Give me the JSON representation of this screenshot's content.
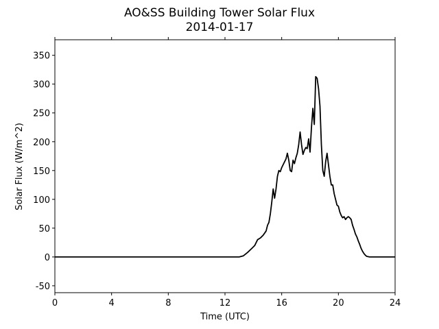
{
  "chart_data": {
    "type": "line",
    "title": "AO&SS Building Tower Solar Flux",
    "subtitle": "2014-01-17",
    "xlabel": "Time (UTC)",
    "ylabel": "Solar Flux (W/m^2)",
    "xlim": [
      0,
      24
    ],
    "ylim": [
      -62,
      377
    ],
    "xticks": [
      0,
      4,
      8,
      12,
      16,
      20,
      24
    ],
    "yticks": [
      -50,
      0,
      50,
      100,
      150,
      200,
      250,
      300,
      350
    ],
    "grid": false,
    "series": [
      {
        "color": "#000000",
        "x": [
          0,
          12.0,
          13.0,
          13.3,
          13.6,
          13.9,
          14.1,
          14.3,
          14.5,
          14.7,
          14.9,
          15.0,
          15.1,
          15.2,
          15.3,
          15.4,
          15.5,
          15.6,
          15.7,
          15.8,
          15.9,
          16.0,
          16.1,
          16.2,
          16.3,
          16.4,
          16.5,
          16.6,
          16.7,
          16.8,
          16.9,
          17.0,
          17.1,
          17.2,
          17.3,
          17.4,
          17.5,
          17.6,
          17.7,
          17.8,
          17.9,
          18.0,
          18.1,
          18.2,
          18.3,
          18.4,
          18.5,
          18.6,
          18.7,
          18.8,
          18.9,
          19.0,
          19.1,
          19.2,
          19.3,
          19.4,
          19.5,
          19.6,
          19.7,
          19.8,
          19.9,
          20.0,
          20.1,
          20.2,
          20.3,
          20.4,
          20.5,
          20.6,
          20.7,
          20.8,
          20.9,
          21.0,
          21.1,
          21.2,
          21.3,
          21.4,
          21.5,
          21.6,
          21.7,
          21.8,
          21.9,
          22.0,
          22.2,
          22.4,
          22.6,
          22.8,
          23.0,
          23.2,
          23.4,
          24.0
        ],
        "y": [
          0,
          0,
          0,
          2,
          8,
          15,
          20,
          30,
          33,
          38,
          45,
          55,
          60,
          75,
          95,
          118,
          102,
          118,
          140,
          150,
          148,
          155,
          160,
          165,
          170,
          180,
          168,
          150,
          148,
          168,
          162,
          172,
          180,
          195,
          217,
          195,
          178,
          185,
          190,
          188,
          205,
          182,
          225,
          258,
          230,
          313,
          310,
          292,
          262,
          195,
          150,
          140,
          165,
          180,
          160,
          140,
          125,
          125,
          110,
          100,
          90,
          88,
          78,
          72,
          68,
          70,
          65,
          68,
          70,
          68,
          65,
          55,
          48,
          40,
          35,
          28,
          22,
          15,
          10,
          6,
          3,
          1,
          0,
          0,
          0,
          0,
          0,
          0,
          0,
          0
        ]
      }
    ]
  }
}
